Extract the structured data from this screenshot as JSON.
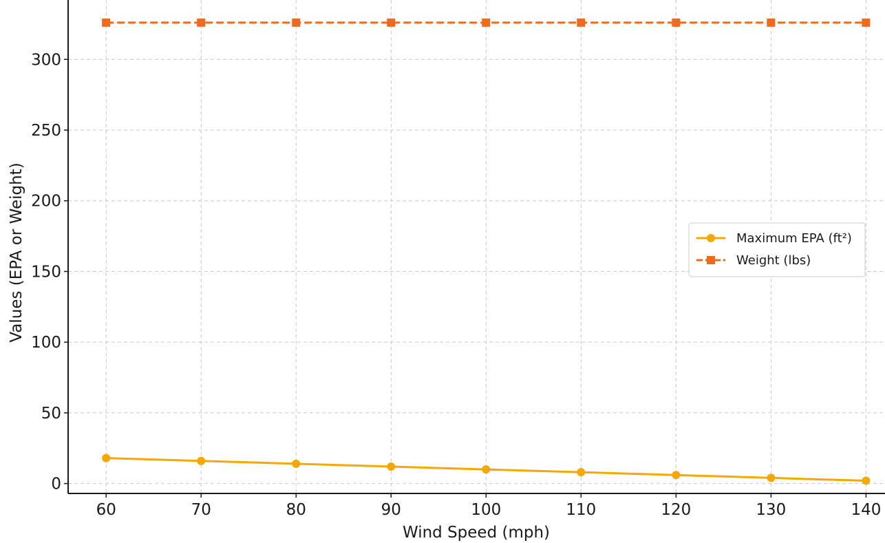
{
  "chart_data": {
    "type": "line",
    "title": "",
    "xlabel": "Wind Speed (mph)",
    "ylabel": "Values (EPA or Weight)",
    "x": [
      60,
      70,
      80,
      90,
      100,
      110,
      120,
      130,
      140
    ],
    "xticks": [
      "60",
      "70",
      "80",
      "90",
      "100",
      "110",
      "120",
      "130",
      "140"
    ],
    "yticks": [
      "0",
      "50",
      "100",
      "150",
      "200",
      "250",
      "300"
    ],
    "xlim": [
      56,
      142
    ],
    "ylim": [
      -7,
      342
    ],
    "grid": true,
    "legend_position": "center-right",
    "series": [
      {
        "name": "Maximum EPA (ft²)",
        "values": [
          18,
          16,
          14,
          12,
          10,
          8,
          6,
          4,
          2
        ],
        "color": "#F5A800",
        "line_style": "solid",
        "marker": "circle"
      },
      {
        "name": "Weight (lbs)",
        "values": [
          326,
          326,
          326,
          326,
          326,
          326,
          326,
          326,
          326
        ],
        "color": "#EE6A1C",
        "line_style": "dashed",
        "marker": "square"
      }
    ]
  }
}
